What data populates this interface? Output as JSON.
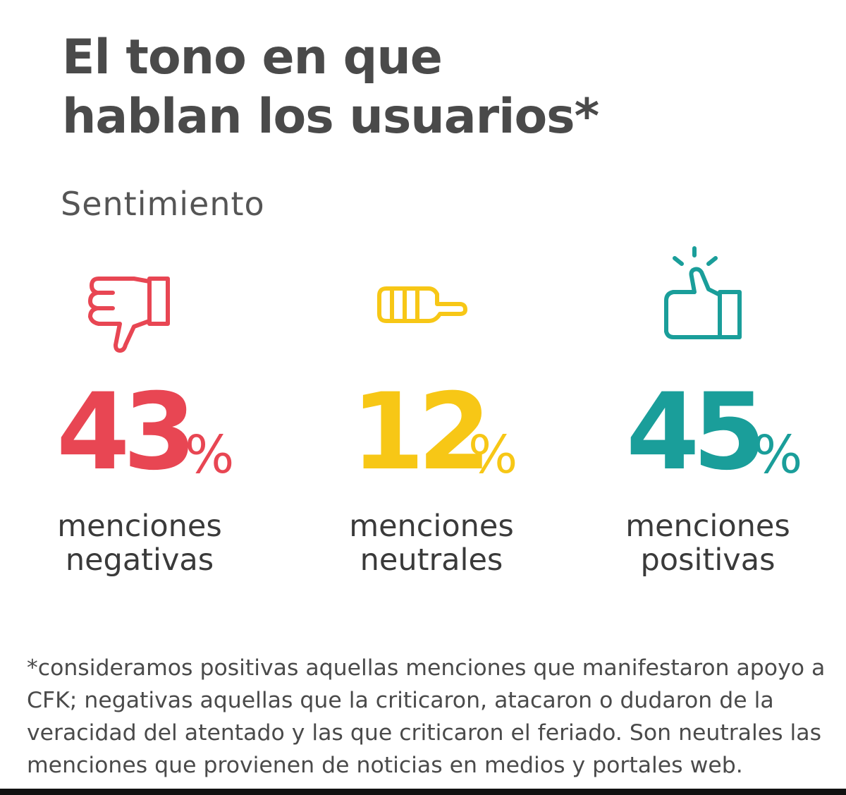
{
  "title": "El tono en que\nhablan los usuarios*",
  "subtitle": "Sentimiento",
  "chart_data": {
    "type": "table",
    "title": "El tono en que hablan los usuarios*",
    "subtitle": "Sentimiento",
    "categories": [
      "menciones negativas",
      "menciones neutrales",
      "menciones positivas"
    ],
    "values": [
      43,
      12,
      45
    ],
    "unit": "%",
    "colors": [
      "#e84653",
      "#f7c716",
      "#1a9e9a"
    ],
    "icons": [
      "thumbs-down-icon",
      "thumbs-sideways-icon",
      "thumbs-up-icon"
    ]
  },
  "items": [
    {
      "value": "43",
      "unit": "%",
      "line1": "menciones",
      "line2": "negativas",
      "color": "#e84653",
      "icon": "thumbs-down-icon"
    },
    {
      "value": "12",
      "unit": "%",
      "line1": "menciones",
      "line2": "neutrales",
      "color": "#f7c716",
      "icon": "thumbs-sideways-icon"
    },
    {
      "value": "45",
      "unit": "%",
      "line1": "menciones",
      "line2": "positivas",
      "color": "#1a9e9a",
      "icon": "thumbs-up-icon"
    }
  ],
  "footnote": "*consideramos positivas aquellas menciones que manifestaron apoyo a CFK; negativas aquellas que la criticaron, atacaron o dudaron de la veracidad del atentado y las que criticaron el feriado. Son neutrales las menciones que provienen de noticias en medios y portales web."
}
